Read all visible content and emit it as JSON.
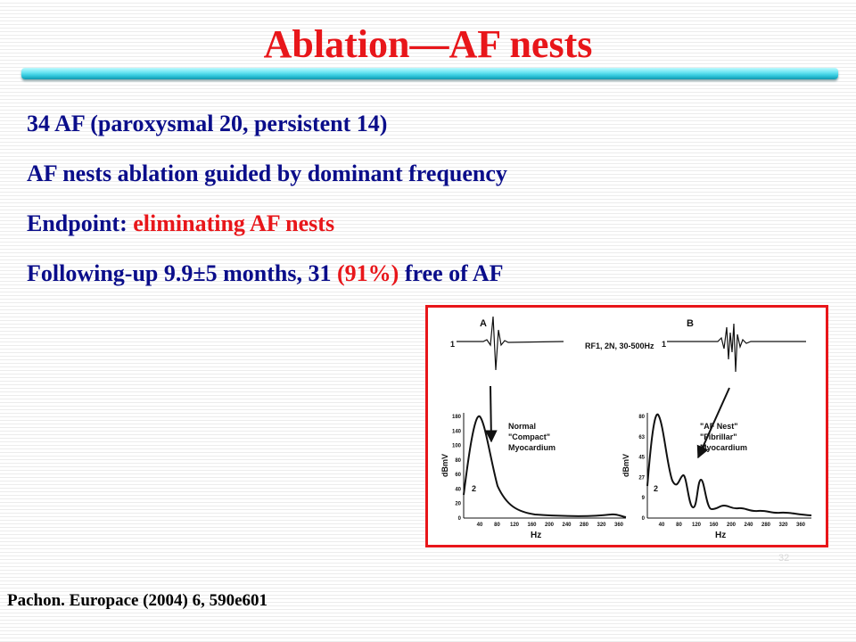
{
  "slide": {
    "title": "Ablation—AF nests",
    "bullets": [
      {
        "text": "34 AF (paroxysmal 20, persistent 14)",
        "highlight": ""
      },
      {
        "text": "AF nests ablation guided by dominant frequency",
        "highlight": ""
      },
      {
        "prefix": "Endpoint: ",
        "highlight": "eliminating AF nests"
      },
      {
        "prefix": "Following-up 9.9±5 months, 31 ",
        "highlight": "(91%)",
        "suffix": " free of AF"
      }
    ],
    "citation": "Pachon. Europace (2004) 6, 590e601",
    "slide_number": "32"
  },
  "figure": {
    "header_text": "RF1, 2N, 30-500Hz",
    "panel_a_label": "A",
    "panel_b_label": "B",
    "trace_label_a": "1",
    "trace_label_b": "1",
    "left_annotation": [
      "Normal",
      "\"Compact\"",
      "Myocardium"
    ],
    "right_annotation": [
      "\"AF Nest\"",
      "\"Fibrillar\"",
      "Myocardium"
    ],
    "left_ylabel": "dBmV",
    "right_ylabel": "dBmV",
    "left_curve_label": "2",
    "right_curve_label": "2",
    "xlabel": "Hz",
    "left_yticks": [
      "180",
      "140",
      "100",
      "80",
      "60",
      "40",
      "20",
      "0"
    ],
    "right_yticks": [
      "80",
      "63",
      "45",
      "27",
      "9",
      "0"
    ],
    "xticks": [
      "40",
      "80",
      "120",
      "160",
      "200",
      "240",
      "280",
      "320",
      "360"
    ]
  },
  "colors": {
    "title": "#e8161a",
    "bullet_text": "#0a0d8a",
    "highlight": "#e8161a",
    "figure_border": "#e8161a"
  }
}
